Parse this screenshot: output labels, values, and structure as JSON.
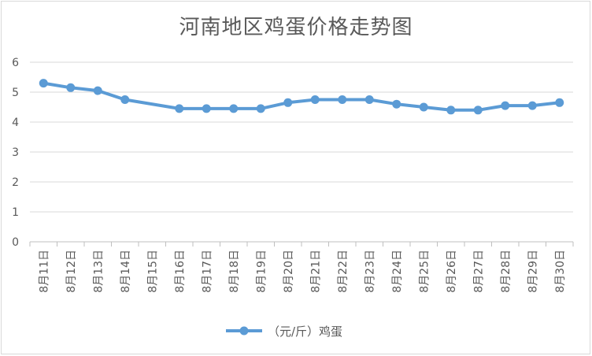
{
  "chart_data": {
    "type": "line",
    "title": "河南地区鸡蛋价格走势图",
    "xlabel": "",
    "ylabel": "",
    "categories": [
      "8月11日",
      "8月12日",
      "8月13日",
      "8月14日",
      "8月15日",
      "8月16日",
      "8月17日",
      "8月18日",
      "8月19日",
      "8月20日",
      "8月21日",
      "8月22日",
      "8月23日",
      "8月24日",
      "8月25日",
      "8月26日",
      "8月27日",
      "8月28日",
      "8月29日",
      "8月30日"
    ],
    "series": [
      {
        "name": "（元/斤）鸡蛋",
        "values": [
          5.3,
          5.15,
          5.05,
          4.75,
          null,
          4.45,
          4.45,
          4.45,
          4.45,
          4.65,
          4.75,
          4.75,
          4.75,
          4.6,
          4.5,
          4.4,
          4.4,
          4.55,
          4.55,
          4.65
        ]
      }
    ],
    "ylim": [
      0,
      6
    ],
    "yticks": [
      0,
      1,
      2,
      3,
      4,
      5,
      6
    ],
    "grid": "horizontal",
    "legend_position": "bottom",
    "color": "#5b9bd5"
  }
}
